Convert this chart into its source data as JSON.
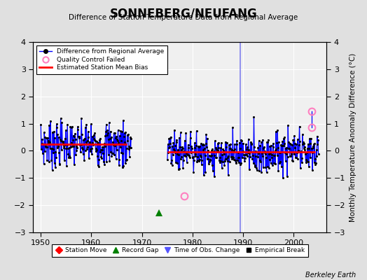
{
  "title": "SONNEBERG/NEUFANG",
  "subtitle": "Difference of Station Temperature Data from Regional Average",
  "ylabel": "Monthly Temperature Anomaly Difference (°C)",
  "credit": "Berkeley Earth",
  "xlim": [
    1948.5,
    2006.5
  ],
  "ylim": [
    -3,
    4
  ],
  "yticks": [
    -3,
    -2,
    -1,
    0,
    1,
    2,
    3,
    4
  ],
  "xticks": [
    1950,
    1960,
    1970,
    1980,
    1990,
    2000
  ],
  "bg_color": "#e0e0e0",
  "plot_bg_color": "#f0f0f0",
  "grid_color": "#ffffff",
  "segment1_bias": 0.25,
  "segment2_bias": -0.05,
  "segment1_xstart": 1950.0,
  "segment1_xend": 1967.0,
  "segment2_xstart": 1975.0,
  "segment2_xend": 2004.3,
  "record_gap_x": 1973.4,
  "record_gap_y": -2.28,
  "obs_change_x": 1989.5,
  "qc_fail_1_x": 1978.3,
  "qc_fail_1_y": -1.65,
  "qc_fail_2_x": 2003.5,
  "qc_fail_2_y": 1.45,
  "qc_fail_3_x": 2003.5,
  "qc_fail_3_y": 0.87,
  "seg1_start_year": 1950,
  "seg1_end_year": 1967,
  "seg1_bias_val": 0.25,
  "seg1_std": 0.42,
  "seg2_start_year": 1975,
  "seg2_end_year": 2004,
  "seg2_bias_val": -0.05,
  "seg2_std": 0.38
}
